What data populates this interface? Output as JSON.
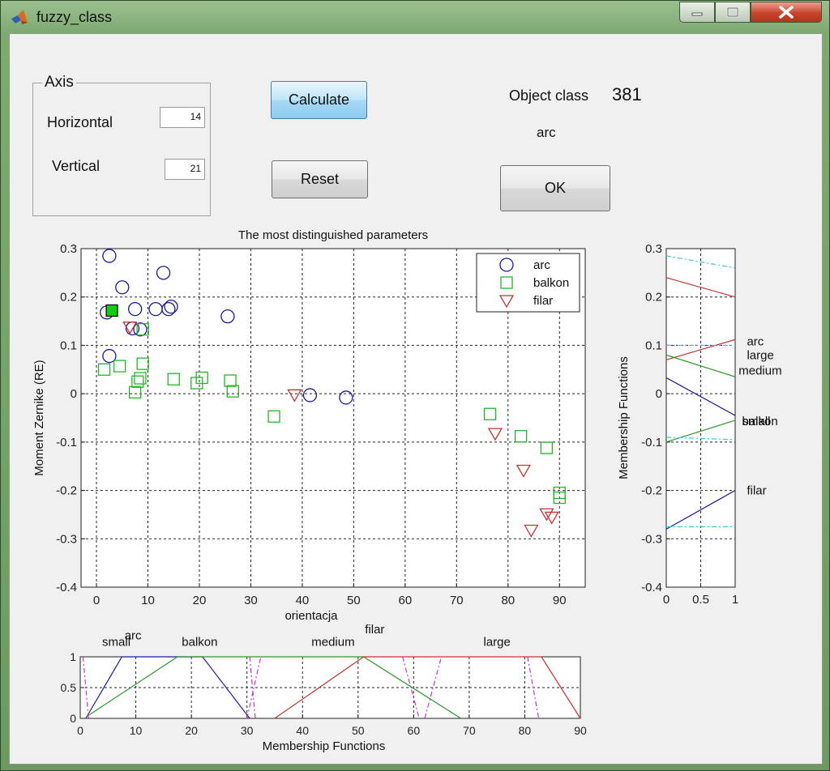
{
  "window": {
    "title": "fuzzy_class"
  },
  "axis_panel": {
    "title": "Axis",
    "horizontal_label": "Horizontal",
    "horizontal_value": "14",
    "vertical_label": "Vertical",
    "vertical_value": "21"
  },
  "buttons": {
    "calculate": "Calculate",
    "reset": "Reset",
    "ok": "OK"
  },
  "result": {
    "object_class_label": "Object class",
    "object_class_value": "381",
    "class_name": "arc"
  },
  "chart_data": [
    {
      "type": "scatter",
      "title": "The most distinguished parameters",
      "xlabel": "orientacja",
      "ylabel": "Moment Zernike (RE)",
      "xlim": [
        -3,
        95
      ],
      "ylim": [
        -0.4,
        0.3
      ],
      "xticks": [
        0,
        10,
        20,
        30,
        40,
        50,
        60,
        70,
        80,
        90
      ],
      "yticks": [
        -0.4,
        -0.3,
        -0.2,
        -0.1,
        0,
        0.1,
        0.2,
        0.3
      ],
      "grid": true,
      "legend_position": "top-right",
      "series": [
        {
          "name": "arc",
          "marker": "circle",
          "color": "#1a1a9e",
          "points": [
            [
              2.5,
              0.285
            ],
            [
              5,
              0.22
            ],
            [
              13,
              0.25
            ],
            [
              2,
              0.168
            ],
            [
              7.5,
              0.175
            ],
            [
              11.5,
              0.175
            ],
            [
              14,
              0.175
            ],
            [
              14.5,
              0.18
            ],
            [
              25.5,
              0.16
            ],
            [
              2.5,
              0.078
            ],
            [
              7,
              0.135
            ],
            [
              8.5,
              0.133
            ],
            [
              41.5,
              -0.003
            ],
            [
              48.5,
              -0.008
            ]
          ]
        },
        {
          "name": "balkon",
          "marker": "square",
          "color": "#22b822",
          "points": [
            [
              1.5,
              0.05
            ],
            [
              4.5,
              0.057
            ],
            [
              7.5,
              0.003
            ],
            [
              8,
              0.025
            ],
            [
              8.5,
              0.032
            ],
            [
              9,
              0.062
            ],
            [
              9,
              0.133
            ],
            [
              15,
              0.03
            ],
            [
              19.5,
              0.022
            ],
            [
              20.5,
              0.033
            ],
            [
              26,
              0.027
            ],
            [
              26.5,
              0.005
            ],
            [
              34.5,
              -0.047
            ],
            [
              76.5,
              -0.042
            ],
            [
              82.5,
              -0.088
            ],
            [
              87.5,
              -0.112
            ],
            [
              90,
              -0.205
            ],
            [
              90,
              -0.215
            ]
          ]
        },
        {
          "name": "filar",
          "marker": "triangle-down",
          "color": "#c83232",
          "points": [
            [
              6.5,
              0.138
            ],
            [
              38.5,
              -0.002
            ],
            [
              77.5,
              -0.082
            ],
            [
              83,
              -0.158
            ],
            [
              84.5,
              -0.282
            ],
            [
              87.5,
              -0.248
            ],
            [
              88.5,
              -0.255
            ]
          ]
        }
      ],
      "selected_point": {
        "series": "balkon",
        "x": 3,
        "y": 0.172,
        "color": "#11cc11"
      }
    },
    {
      "type": "line",
      "xlabel": "Membership Functions",
      "xlim": [
        0,
        90
      ],
      "ylim": [
        0,
        1
      ],
      "xticks": [
        0,
        10,
        20,
        30,
        40,
        50,
        60,
        70,
        80,
        90
      ],
      "yticks": [
        0,
        0.5,
        1
      ],
      "grid": true,
      "labels": [
        {
          "text": "small",
          "x": 6.5,
          "y": 1.18
        },
        {
          "text": "arc",
          "x": 9.5,
          "y": 1.28
        },
        {
          "text": "balkon",
          "x": 21.5,
          "y": 1.18
        },
        {
          "text": "medium",
          "x": 45.5,
          "y": 1.18
        },
        {
          "text": "filar",
          "x": 53,
          "y": 1.38
        },
        {
          "text": "large",
          "x": 75,
          "y": 1.18
        }
      ],
      "series": [
        {
          "color": "#1a1a9e",
          "style": "solid",
          "points": [
            [
              1,
              0
            ],
            [
              7.5,
              1
            ],
            [
              22,
              1
            ],
            [
              30.5,
              0
            ]
          ]
        },
        {
          "color": "#2a9a2a",
          "style": "solid",
          "points": [
            [
              1.5,
              0.05
            ],
            [
              17.5,
              1
            ],
            [
              51,
              1
            ],
            [
              68.5,
              0
            ]
          ]
        },
        {
          "color": "#c83232",
          "style": "solid",
          "points": [
            [
              35,
              0
            ],
            [
              51,
              1
            ],
            [
              83,
              1
            ],
            [
              90,
              0
            ]
          ]
        },
        {
          "color": "#cc33cc",
          "style": "dashdot",
          "points": [
            [
              0.5,
              1
            ],
            [
              1.5,
              0
            ]
          ]
        },
        {
          "color": "#cc33cc",
          "style": "dashdot",
          "points": [
            [
              30.5,
              1
            ],
            [
              31.5,
              0
            ]
          ]
        },
        {
          "color": "#cc33cc",
          "style": "dashdot",
          "points": [
            [
              30,
              0
            ],
            [
              32.5,
              1
            ]
          ]
        },
        {
          "color": "#cc33cc",
          "style": "dashdot",
          "points": [
            [
              62,
              0
            ],
            [
              65,
              1
            ]
          ]
        },
        {
          "color": "#cc33cc",
          "style": "dashdot",
          "points": [
            [
              58,
              1
            ],
            [
              61,
              0
            ]
          ]
        },
        {
          "color": "#cc33cc",
          "style": "dashdot",
          "points": [
            [
              80.5,
              1
            ],
            [
              82.5,
              0
            ]
          ]
        }
      ]
    },
    {
      "type": "line",
      "ylabel": "Membership Functions",
      "xlim": [
        0,
        1
      ],
      "ylim": [
        -0.4,
        0.3
      ],
      "xticks": [
        0,
        0.5,
        1
      ],
      "yticks": [
        -0.4,
        -0.3,
        -0.2,
        -0.1,
        0,
        0.1,
        0.2,
        0.3
      ],
      "grid": true,
      "labels": [
        {
          "text": "arc",
          "x": 1.17,
          "y": 0.108
        },
        {
          "text": "large",
          "x": 1.17,
          "y": 0.08
        },
        {
          "text": "medium",
          "x": 1.05,
          "y": 0.048
        },
        {
          "text": "small",
          "x": 1.1,
          "y": -0.057
        },
        {
          "text": "balkon",
          "x": 1.1,
          "y": -0.057
        },
        {
          "text": "filar",
          "x": 1.17,
          "y": -0.2
        }
      ],
      "series": [
        {
          "color": "#c83232",
          "style": "solid",
          "points": [
            [
              0,
              0.24
            ],
            [
              1,
              0.2
            ]
          ]
        },
        {
          "color": "#c83232",
          "style": "solid",
          "points": [
            [
              0,
              0.07
            ],
            [
              1,
              0.112
            ]
          ]
        },
        {
          "color": "#2a9a2a",
          "style": "solid",
          "points": [
            [
              0,
              0.08
            ],
            [
              1,
              0.035
            ]
          ]
        },
        {
          "color": "#1a1a9e",
          "style": "solid",
          "points": [
            [
              0,
              0.033
            ],
            [
              1,
              -0.045
            ]
          ]
        },
        {
          "color": "#2a9a2a",
          "style": "solid",
          "points": [
            [
              0,
              -0.1
            ],
            [
              1,
              -0.055
            ]
          ]
        },
        {
          "color": "#1a1a9e",
          "style": "solid",
          "points": [
            [
              0,
              -0.28
            ],
            [
              1,
              -0.2
            ]
          ]
        },
        {
          "color": "#33cccc",
          "style": "dashdot",
          "points": [
            [
              0,
              0.285
            ],
            [
              1,
              0.26
            ]
          ]
        },
        {
          "color": "#33cccc",
          "style": "dashdot",
          "points": [
            [
              0,
              0.1
            ],
            [
              1,
              0.1
            ]
          ]
        },
        {
          "color": "#33cccc",
          "style": "dashdot",
          "points": [
            [
              0,
              -0.09
            ],
            [
              1,
              -0.095
            ]
          ]
        },
        {
          "color": "#33cccc",
          "style": "dashdot",
          "points": [
            [
              0,
              -0.275
            ],
            [
              1,
              -0.275
            ]
          ]
        }
      ]
    }
  ]
}
